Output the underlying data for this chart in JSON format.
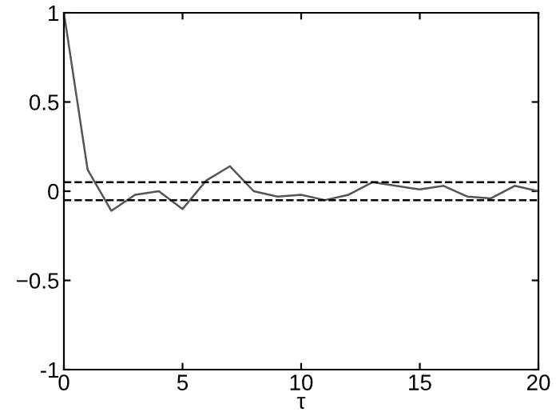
{
  "chart_data": {
    "type": "line",
    "xlabel": "τ",
    "x": [
      0,
      1,
      2,
      3,
      4,
      5,
      6,
      7,
      8,
      9,
      10,
      11,
      12,
      13,
      14,
      15,
      16,
      17,
      18,
      19,
      20
    ],
    "series": [
      {
        "color": "#555555",
        "values": [
          1,
          0.12,
          -0.11,
          -0.02,
          0,
          -0.1,
          0.06,
          0.14,
          0,
          -0.03,
          -0.02,
          -0.05,
          -0.02,
          0.05,
          0.03,
          0.01,
          0.03,
          -0.03,
          -0.04,
          0.03,
          0
        ]
      }
    ],
    "ref_lines": [
      {
        "axis": "y",
        "value": 0.05,
        "color": "#000000",
        "line_style": "dashed"
      },
      {
        "axis": "y",
        "value": -0.05,
        "color": "#000000",
        "line_style": "dashed"
      }
    ],
    "xlim": [
      0,
      20
    ],
    "ylim": [
      -1,
      1
    ],
    "xticks": [
      0,
      5,
      10,
      15,
      20
    ],
    "yticks": [
      -1,
      {
        "value": -0.5,
        "label": "−0.5"
      },
      0,
      0.5,
      1
    ],
    "grid": false,
    "marker": "none",
    "line_style": "solid"
  }
}
